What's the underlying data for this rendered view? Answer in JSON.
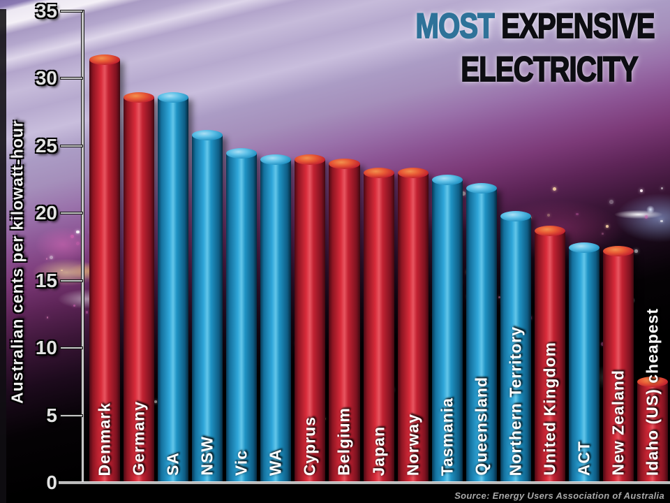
{
  "title": {
    "line1_highlight": "MOST",
    "line1_rest": " EXPENSIVE",
    "line2": "ELECTRICITY"
  },
  "source": "Source: Energy Users Association of Australia",
  "colors": {
    "world_bar_red": "#c42333",
    "australia_bar_blue": "#2fa3d6",
    "title_highlight_blue": "#2e7299"
  },
  "chart_data": {
    "type": "bar",
    "title": "Most Expensive Electricity",
    "ylabel": "Australian cents per kilowatt-hour",
    "ylim": [
      0,
      35
    ],
    "y_ticks": [
      0,
      5,
      10,
      15,
      20,
      25,
      30,
      35
    ],
    "grid": false,
    "legend": "none",
    "bars": [
      {
        "label": "Denmark",
        "value": 31.4,
        "group": "world"
      },
      {
        "label": "Germany",
        "value": 28.6,
        "group": "world"
      },
      {
        "label": "SA",
        "value": 28.6,
        "group": "australia"
      },
      {
        "label": "NSW",
        "value": 25.8,
        "group": "australia"
      },
      {
        "label": "Vic",
        "value": 24.5,
        "group": "australia"
      },
      {
        "label": "WA",
        "value": 24.0,
        "group": "australia"
      },
      {
        "label": "Cyprus",
        "value": 24.0,
        "group": "world"
      },
      {
        "label": "Belgium",
        "value": 23.7,
        "group": "world"
      },
      {
        "label": "Japan",
        "value": 23.0,
        "group": "world"
      },
      {
        "label": "Norway",
        "value": 23.0,
        "group": "world"
      },
      {
        "label": "Tasmania",
        "value": 22.5,
        "group": "australia"
      },
      {
        "label": "Queensland",
        "value": 21.9,
        "group": "australia"
      },
      {
        "label": "Northern Territory",
        "value": 19.8,
        "group": "australia"
      },
      {
        "label": "United Kingdom",
        "value": 18.7,
        "group": "world"
      },
      {
        "label": "ACT",
        "value": 17.5,
        "group": "australia"
      },
      {
        "label": "New Zealand",
        "value": 17.2,
        "group": "world"
      },
      {
        "label": "Idaho (US) cheapest",
        "value": 7.5,
        "group": "world"
      }
    ]
  }
}
